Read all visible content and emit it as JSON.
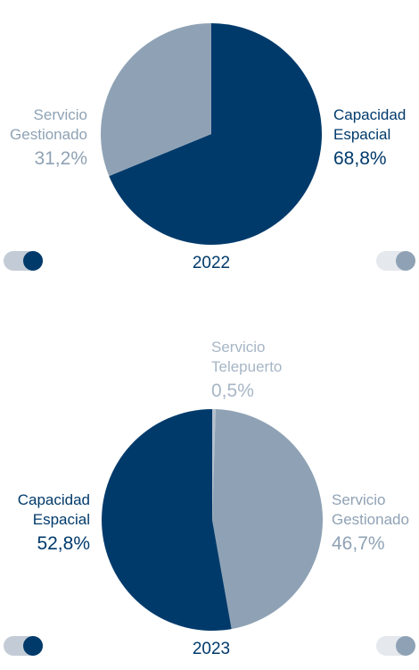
{
  "colors": {
    "capacidad": "#003a6b",
    "gestionado": "#8fa2b5",
    "telepuerto": "#b3c0cd"
  },
  "chart_data": [
    {
      "type": "pie",
      "title": "2022",
      "slices": [
        {
          "label": "Capacidad Espacial",
          "value": 68.8,
          "display": "68,8%"
        },
        {
          "label": "Servicio Gestionado",
          "value": 31.2,
          "display": "31,2%"
        }
      ]
    },
    {
      "type": "pie",
      "title": "2023",
      "slices": [
        {
          "label": "Servicio Telepuerto",
          "value": 0.5,
          "display": "0,5%"
        },
        {
          "label": "Servicio Gestionado",
          "value": 46.7,
          "display": "46,7%"
        },
        {
          "label": "Capacidad Espacial",
          "value": 52.8,
          "display": "52,8%"
        }
      ]
    }
  ],
  "labels": {
    "c1_cap_l1": "Capacidad",
    "c1_cap_l2": "Espacial",
    "c1_ges_l1": "Servicio",
    "c1_ges_l2": "Gestionado",
    "c2_tel_l1": "Servicio",
    "c2_tel_l2": "Telepuerto",
    "c2_ges_l1": "Servicio",
    "c2_ges_l2": "Gestionado",
    "c2_cap_l1": "Capacidad",
    "c2_cap_l2": "Espacial"
  }
}
